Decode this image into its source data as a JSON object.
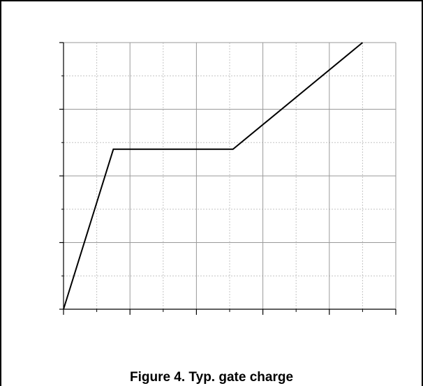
{
  "figure": {
    "caption": "Figure 4. Typ. gate charge"
  },
  "chart_data": {
    "type": "line",
    "title": "",
    "xlabel": "",
    "ylabel": "",
    "xlim": [
      0,
      10
    ],
    "ylim": [
      0,
      8
    ],
    "x_major_ticks": [
      0,
      2,
      4,
      6,
      8,
      10
    ],
    "x_minor_ticks": [
      1,
      3,
      5,
      7,
      9
    ],
    "y_major_ticks": [
      0,
      2,
      4,
      6,
      8
    ],
    "y_minor_ticks": [
      1,
      3,
      5,
      7
    ],
    "grid": true,
    "legend": "none",
    "series": [
      {
        "x": [
          0,
          1.5,
          5.1,
          9.0
        ],
        "y": [
          0,
          4.8,
          4.8,
          8.0
        ],
        "color": "#000000"
      }
    ]
  }
}
